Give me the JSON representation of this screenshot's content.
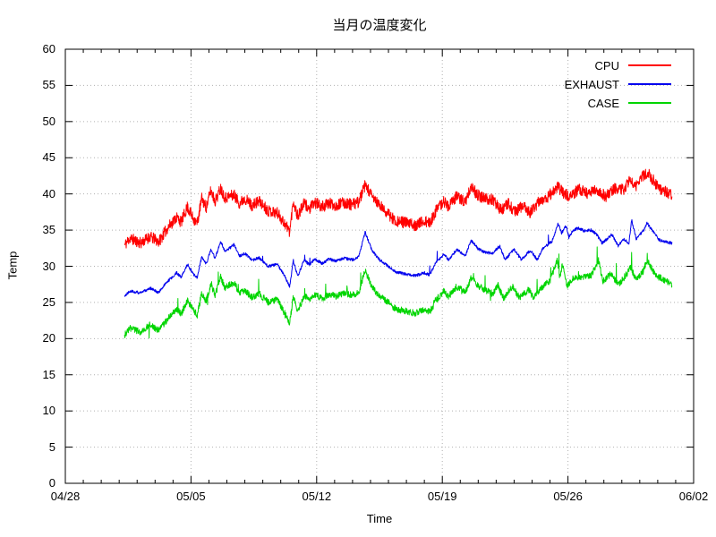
{
  "chart_data": {
    "type": "line",
    "title": "当月の温度変化",
    "xlabel": "Time",
    "ylabel": "Temp",
    "grid": "dotted",
    "background": "#ffffff",
    "border_color": "#000000",
    "grid_color": "#b0b0b0",
    "x_axis": {
      "tick_labels": [
        "04/28",
        "05/05",
        "05/12",
        "05/19",
        "05/26",
        "06/02"
      ],
      "tick_days": [
        0,
        7,
        14,
        21,
        28,
        35
      ],
      "minor_tick_interval_days": 1,
      "range_days": [
        0,
        35
      ]
    },
    "y_axis": {
      "min": 0,
      "max": 60,
      "tick_step": 5,
      "tick_labels": [
        "0",
        "5",
        "10",
        "15",
        "20",
        "25",
        "30",
        "35",
        "40",
        "45",
        "50",
        "55",
        "60"
      ]
    },
    "legend": {
      "position": "top-right-inside",
      "entries": [
        "CPU",
        "EXHAUST",
        "CASE"
      ]
    },
    "series": [
      {
        "name": "CPU",
        "color": "#ff0000",
        "seed": 11,
        "noise_amp": 0.8,
        "spike_prob": 0,
        "spike_max": 0,
        "dip_prob": 0,
        "dip_max": 0,
        "points": [
          [
            3.3,
            32.9
          ],
          [
            3.6,
            33.9
          ],
          [
            4.2,
            33.2
          ],
          [
            4.7,
            34.1
          ],
          [
            5.2,
            33.4
          ],
          [
            5.7,
            35.3
          ],
          [
            6.2,
            36.8
          ],
          [
            6.45,
            36.1
          ],
          [
            6.8,
            38.2
          ],
          [
            7.1,
            36.7
          ],
          [
            7.35,
            35.9
          ],
          [
            7.6,
            39.4
          ],
          [
            7.85,
            38.1
          ],
          [
            8.1,
            40.5
          ],
          [
            8.35,
            39.0
          ],
          [
            8.65,
            40.8
          ],
          [
            8.9,
            39.5
          ],
          [
            9.4,
            39.9
          ],
          [
            9.7,
            38.7
          ],
          [
            10.0,
            39.4
          ],
          [
            10.4,
            38.4
          ],
          [
            10.8,
            39.0
          ],
          [
            11.3,
            37.7
          ],
          [
            11.8,
            37.4
          ],
          [
            12.2,
            36.0
          ],
          [
            12.5,
            34.8
          ],
          [
            12.7,
            39.0
          ],
          [
            12.95,
            36.9
          ],
          [
            13.3,
            38.7
          ],
          [
            13.6,
            37.9
          ],
          [
            13.9,
            38.8
          ],
          [
            14.3,
            38.2
          ],
          [
            14.7,
            38.7
          ],
          [
            15.1,
            38.4
          ],
          [
            15.5,
            38.8
          ],
          [
            16.0,
            38.5
          ],
          [
            16.35,
            38.9
          ],
          [
            16.7,
            41.2
          ],
          [
            17.1,
            39.6
          ],
          [
            17.5,
            38.4
          ],
          [
            18.0,
            37.2
          ],
          [
            18.4,
            36.3
          ],
          [
            19.0,
            36.0
          ],
          [
            19.5,
            35.7
          ],
          [
            20.0,
            36.2
          ],
          [
            20.3,
            35.9
          ],
          [
            20.6,
            37.5
          ],
          [
            21.1,
            39.0
          ],
          [
            21.35,
            38.2
          ],
          [
            21.8,
            39.7
          ],
          [
            22.3,
            38.9
          ],
          [
            22.6,
            41.0
          ],
          [
            23.0,
            39.8
          ],
          [
            23.4,
            39.3
          ],
          [
            23.8,
            39.2
          ],
          [
            24.3,
            37.7
          ],
          [
            24.7,
            38.7
          ],
          [
            25.0,
            37.4
          ],
          [
            25.5,
            38.4
          ],
          [
            25.9,
            37.4
          ],
          [
            26.4,
            39.0
          ],
          [
            26.9,
            39.6
          ],
          [
            27.4,
            41.0
          ],
          [
            27.8,
            40.0
          ],
          [
            28.2,
            39.6
          ],
          [
            28.6,
            40.8
          ],
          [
            29.1,
            40.0
          ],
          [
            29.6,
            40.6
          ],
          [
            30.1,
            39.6
          ],
          [
            30.6,
            40.8
          ],
          [
            31.1,
            40.6
          ],
          [
            31.45,
            42.0
          ],
          [
            31.7,
            40.8
          ],
          [
            32.1,
            42.3
          ],
          [
            32.4,
            43.0
          ],
          [
            32.9,
            41.4
          ],
          [
            33.2,
            40.6
          ],
          [
            33.5,
            40.2
          ],
          [
            33.8,
            39.8
          ]
        ]
      },
      {
        "name": "EXHAUST",
        "color": "#0000ee",
        "seed": 22,
        "noise_amp": 0.2,
        "spike_prob": 0.005,
        "spike_max": 0.9,
        "dip_prob": 0,
        "dip_max": 0,
        "points": [
          [
            3.3,
            25.9
          ],
          [
            3.6,
            26.6
          ],
          [
            4.2,
            26.3
          ],
          [
            4.7,
            27.0
          ],
          [
            5.2,
            26.4
          ],
          [
            5.7,
            27.9
          ],
          [
            6.2,
            29.1
          ],
          [
            6.45,
            28.5
          ],
          [
            6.8,
            30.3
          ],
          [
            7.1,
            29.0
          ],
          [
            7.35,
            28.4
          ],
          [
            7.6,
            31.3
          ],
          [
            7.85,
            30.3
          ],
          [
            8.1,
            32.3
          ],
          [
            8.35,
            31.1
          ],
          [
            8.65,
            33.5
          ],
          [
            8.9,
            32.0
          ],
          [
            9.4,
            33.0
          ],
          [
            9.7,
            31.4
          ],
          [
            10.0,
            31.8
          ],
          [
            10.4,
            30.8
          ],
          [
            10.8,
            31.2
          ],
          [
            11.3,
            30.0
          ],
          [
            11.8,
            30.3
          ],
          [
            12.2,
            28.7
          ],
          [
            12.5,
            27.2
          ],
          [
            12.7,
            30.8
          ],
          [
            12.95,
            28.6
          ],
          [
            13.3,
            30.9
          ],
          [
            13.6,
            30.2
          ],
          [
            13.9,
            31.0
          ],
          [
            14.3,
            30.4
          ],
          [
            14.7,
            31.0
          ],
          [
            15.1,
            30.7
          ],
          [
            15.5,
            31.1
          ],
          [
            16.0,
            30.9
          ],
          [
            16.35,
            31.3
          ],
          [
            16.7,
            34.7
          ],
          [
            17.1,
            32.1
          ],
          [
            17.5,
            30.9
          ],
          [
            18.0,
            30.0
          ],
          [
            18.4,
            29.2
          ],
          [
            19.0,
            28.9
          ],
          [
            19.5,
            28.7
          ],
          [
            20.0,
            29.1
          ],
          [
            20.3,
            28.8
          ],
          [
            20.6,
            30.3
          ],
          [
            21.1,
            31.7
          ],
          [
            21.35,
            30.9
          ],
          [
            21.8,
            32.3
          ],
          [
            22.3,
            31.5
          ],
          [
            22.6,
            33.6
          ],
          [
            23.0,
            32.4
          ],
          [
            23.4,
            31.9
          ],
          [
            23.8,
            31.8
          ],
          [
            24.2,
            32.8
          ],
          [
            24.5,
            30.9
          ],
          [
            25.0,
            32.4
          ],
          [
            25.4,
            30.9
          ],
          [
            25.9,
            32.2
          ],
          [
            26.3,
            30.9
          ],
          [
            26.6,
            32.5
          ],
          [
            27.1,
            33.4
          ],
          [
            27.45,
            35.9
          ],
          [
            27.65,
            34.6
          ],
          [
            27.9,
            35.6
          ],
          [
            28.05,
            34.0
          ],
          [
            28.3,
            35.0
          ],
          [
            28.6,
            35.3
          ],
          [
            28.9,
            34.9
          ],
          [
            29.3,
            35.0
          ],
          [
            29.6,
            34.4
          ],
          [
            29.9,
            33.2
          ],
          [
            30.2,
            33.8
          ],
          [
            30.45,
            34.4
          ],
          [
            30.8,
            32.8
          ],
          [
            31.1,
            33.8
          ],
          [
            31.4,
            33.2
          ],
          [
            31.55,
            36.4
          ],
          [
            31.8,
            33.8
          ],
          [
            32.2,
            34.9
          ],
          [
            32.4,
            36.0
          ],
          [
            32.8,
            34.6
          ],
          [
            33.1,
            33.6
          ],
          [
            33.4,
            33.4
          ],
          [
            33.8,
            33.2
          ]
        ]
      },
      {
        "name": "CASE",
        "color": "#00d500",
        "seed": 33,
        "noise_amp": 0.45,
        "spike_prob": 0.01,
        "spike_max": 1.6,
        "dip_prob": 0.005,
        "dip_max": 1.0,
        "points": [
          [
            3.3,
            20.5
          ],
          [
            3.6,
            21.4
          ],
          [
            4.2,
            20.9
          ],
          [
            4.7,
            21.9
          ],
          [
            5.2,
            21.1
          ],
          [
            5.7,
            22.7
          ],
          [
            6.2,
            24.1
          ],
          [
            6.45,
            23.4
          ],
          [
            6.8,
            25.3
          ],
          [
            7.1,
            24.0
          ],
          [
            7.35,
            23.3
          ],
          [
            7.6,
            26.3
          ],
          [
            7.85,
            25.2
          ],
          [
            8.1,
            27.4
          ],
          [
            8.35,
            26.0
          ],
          [
            8.65,
            28.5
          ],
          [
            8.9,
            27.0
          ],
          [
            9.4,
            27.8
          ],
          [
            9.7,
            26.2
          ],
          [
            10.0,
            26.7
          ],
          [
            10.4,
            25.7
          ],
          [
            10.8,
            26.2
          ],
          [
            11.3,
            25.0
          ],
          [
            11.8,
            25.4
          ],
          [
            12.2,
            23.6
          ],
          [
            12.5,
            22.2
          ],
          [
            12.7,
            25.8
          ],
          [
            12.95,
            23.7
          ],
          [
            13.3,
            26.0
          ],
          [
            13.6,
            25.3
          ],
          [
            13.9,
            26.1
          ],
          [
            14.3,
            25.5
          ],
          [
            14.7,
            26.1
          ],
          [
            15.1,
            25.8
          ],
          [
            15.5,
            26.3
          ],
          [
            16.0,
            26.0
          ],
          [
            16.35,
            26.4
          ],
          [
            16.7,
            29.4
          ],
          [
            17.1,
            27.0
          ],
          [
            17.5,
            25.9
          ],
          [
            18.0,
            25.0
          ],
          [
            18.4,
            24.1
          ],
          [
            19.0,
            23.8
          ],
          [
            19.5,
            23.5
          ],
          [
            20.0,
            24.0
          ],
          [
            20.3,
            23.7
          ],
          [
            20.6,
            25.2
          ],
          [
            21.1,
            26.6
          ],
          [
            21.35,
            25.8
          ],
          [
            21.8,
            27.2
          ],
          [
            22.3,
            26.4
          ],
          [
            22.6,
            28.4
          ],
          [
            23.0,
            27.3
          ],
          [
            23.4,
            26.7
          ],
          [
            23.8,
            26.2
          ],
          [
            24.1,
            27.4
          ],
          [
            24.4,
            25.6
          ],
          [
            24.9,
            27.2
          ],
          [
            25.3,
            25.6
          ],
          [
            25.8,
            26.8
          ],
          [
            26.1,
            25.6
          ],
          [
            26.5,
            27.0
          ],
          [
            27.0,
            28.0
          ],
          [
            27.4,
            30.8
          ],
          [
            27.55,
            28.4
          ],
          [
            27.7,
            30.4
          ],
          [
            27.95,
            27.2
          ],
          [
            28.3,
            28.4
          ],
          [
            28.8,
            28.4
          ],
          [
            29.3,
            28.7
          ],
          [
            29.7,
            30.8
          ],
          [
            29.95,
            28.0
          ],
          [
            30.4,
            29.0
          ],
          [
            30.8,
            27.4
          ],
          [
            31.2,
            28.7
          ],
          [
            31.5,
            29.8
          ],
          [
            31.8,
            28.2
          ],
          [
            32.2,
            29.3
          ],
          [
            32.4,
            30.8
          ],
          [
            32.9,
            28.7
          ],
          [
            33.3,
            28.2
          ],
          [
            33.8,
            27.5
          ]
        ]
      }
    ]
  }
}
